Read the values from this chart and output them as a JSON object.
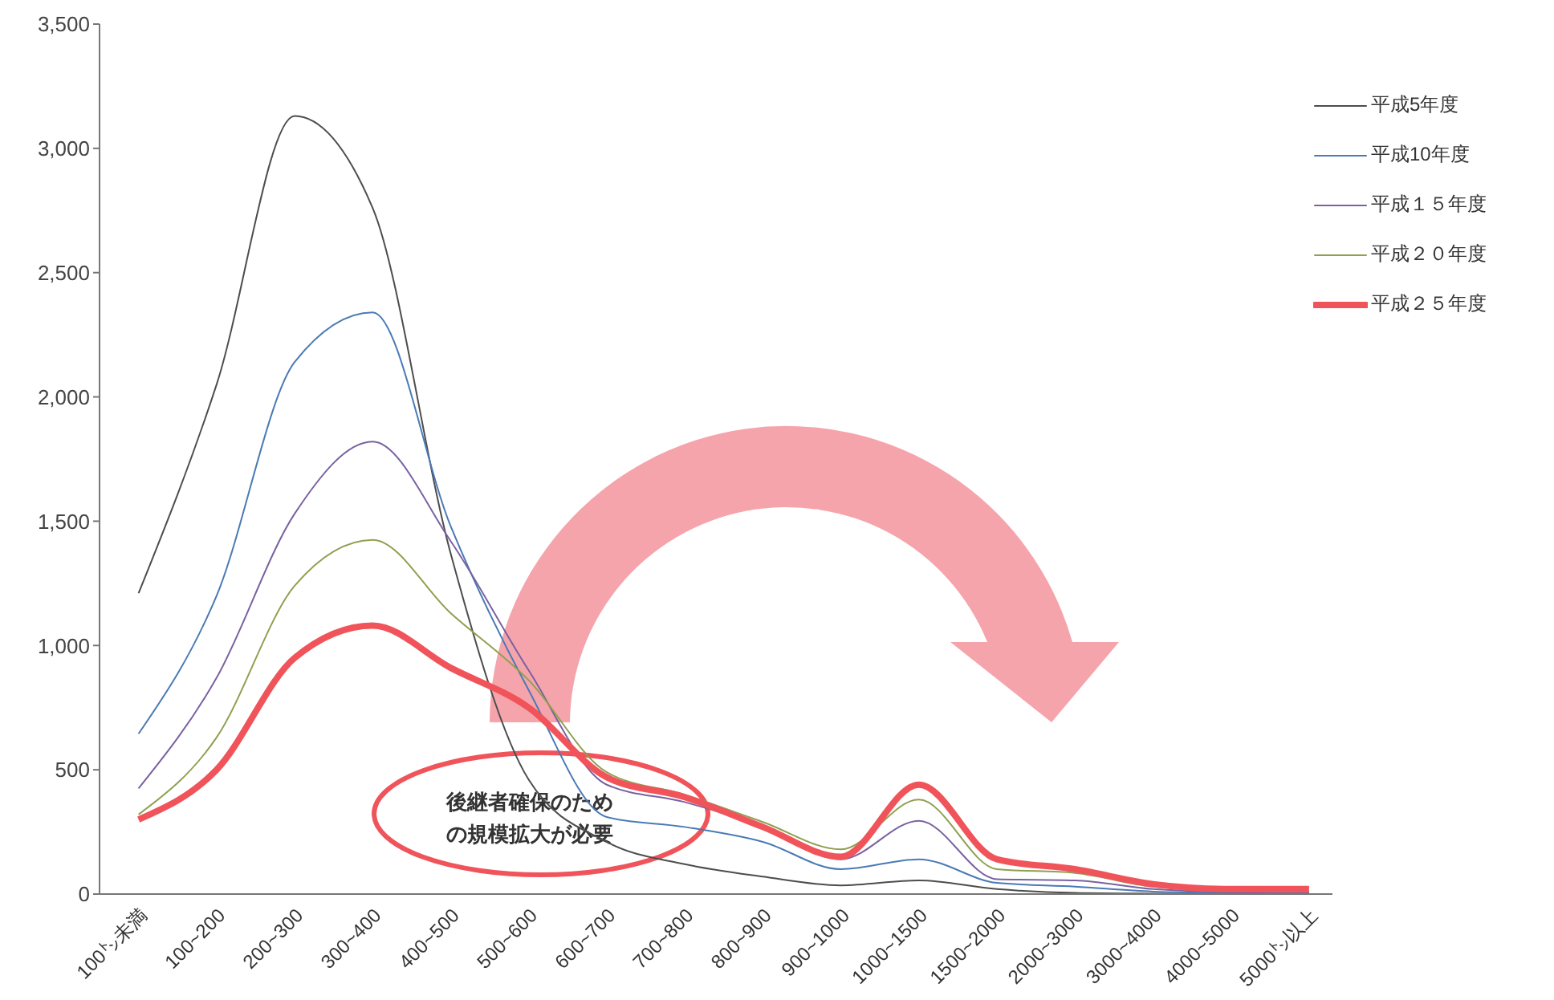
{
  "chart_data": {
    "type": "line",
    "categories": [
      "100㌧未満",
      "100~200",
      "200~300",
      "300~400",
      "400~500",
      "500~600",
      "600~700",
      "700~800",
      "800~900",
      "900~1000",
      "1000~1500",
      "1500~2000",
      "2000~3000",
      "3000~4000",
      "4000~5000",
      "5000㌧以上"
    ],
    "series": [
      {
        "name": "平成5年度",
        "color": "#4d4d4d",
        "values": [
          1210,
          2050,
          3130,
          2760,
          1370,
          460,
          210,
          120,
          70,
          35,
          55,
          20,
          5,
          2,
          1,
          1
        ]
      },
      {
        "name": "平成10年度",
        "color": "#4a7ab5",
        "values": [
          645,
          1200,
          2140,
          2340,
          1480,
          820,
          310,
          270,
          210,
          100,
          140,
          45,
          30,
          10,
          5,
          3
        ]
      },
      {
        "name": "平成１５年度",
        "color": "#7a62a0",
        "values": [
          425,
          870,
          1530,
          1820,
          1420,
          900,
          440,
          370,
          270,
          140,
          295,
          60,
          55,
          20,
          8,
          5
        ]
      },
      {
        "name": "平成２０年度",
        "color": "#8fa050",
        "values": [
          320,
          630,
          1240,
          1425,
          1130,
          860,
          490,
          400,
          290,
          180,
          380,
          100,
          85,
          30,
          15,
          10
        ]
      },
      {
        "name": "平成２５年度",
        "color": "#f0545a",
        "values": [
          300,
          500,
          950,
          1080,
          910,
          750,
          470,
          390,
          270,
          150,
          440,
          140,
          100,
          40,
          20,
          20
        ]
      }
    ],
    "ylim": [
      0,
      3500
    ],
    "yticks": [
      {
        "value": 0,
        "label": "0"
      },
      {
        "value": 500,
        "label": "500"
      },
      {
        "value": 1000,
        "label": "1,000"
      },
      {
        "value": 1500,
        "label": "1,500"
      },
      {
        "value": 2000,
        "label": "2,000"
      },
      {
        "value": 2500,
        "label": "2,500"
      },
      {
        "value": 3000,
        "label": "3,000"
      },
      {
        "value": 3500,
        "label": "3,500"
      }
    ],
    "grid": false,
    "legend": "top right",
    "marker": "none",
    "line_style": "solid",
    "annotations": [
      "後継者確保のための規模拡大が必要"
    ]
  }
}
